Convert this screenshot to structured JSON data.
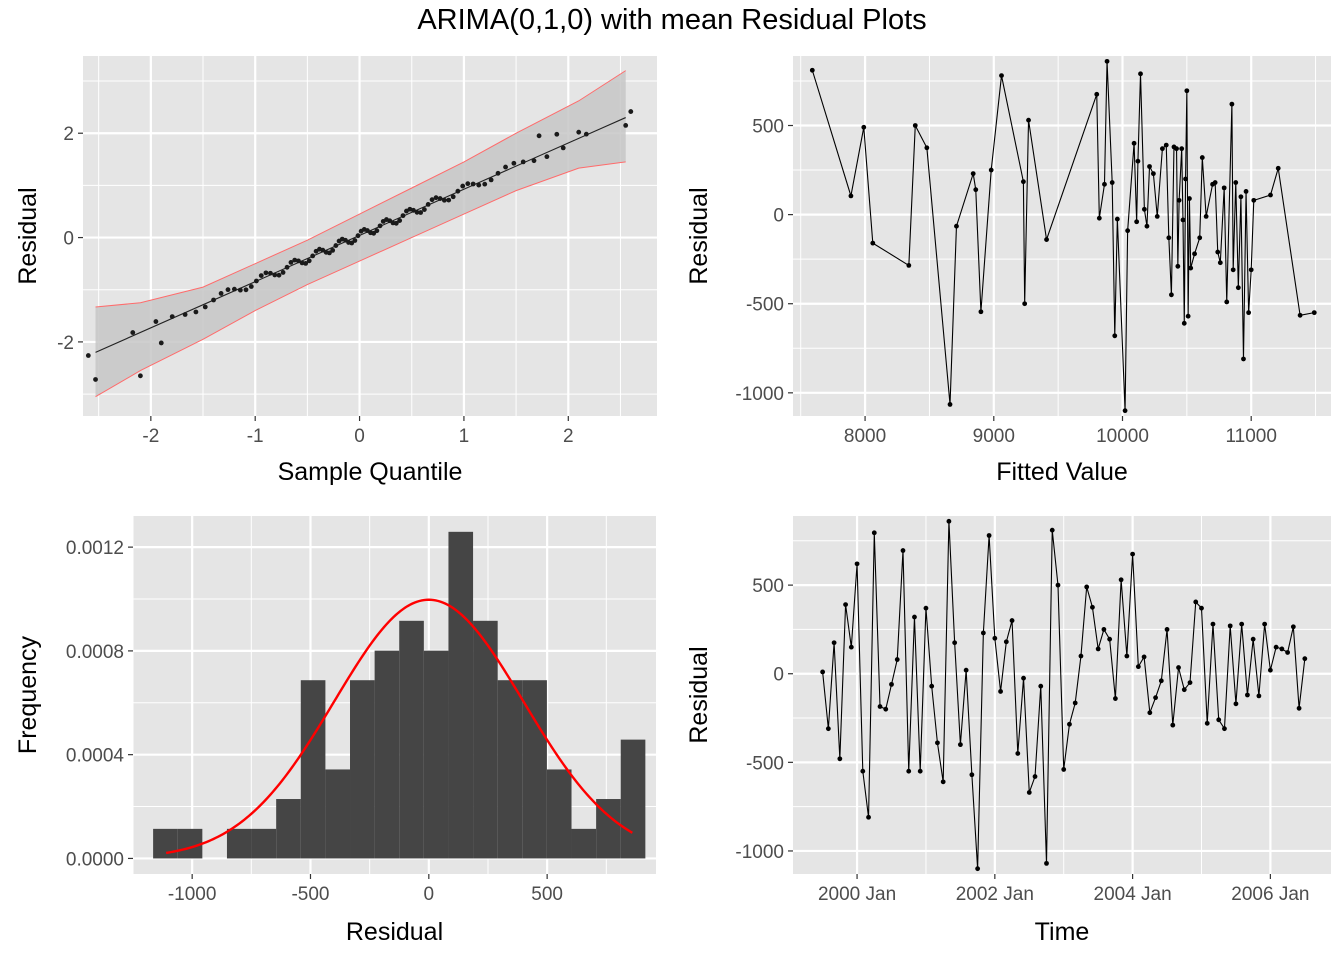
{
  "title": "ARIMA(0,1,0) with mean Residual Plots",
  "colors": {
    "panel": "#e5e5e5",
    "grid": "#ffffff",
    "points": "#000000",
    "band": "#c7c7c7",
    "band_edge": "#ff6b6b",
    "bars": "#454545",
    "density": "#ff0000"
  },
  "chart_data": [
    {
      "id": "qq",
      "type": "scatter",
      "xlabel": "Sample Quantile",
      "ylabel": "Residual",
      "xlim": [
        -2.65,
        2.85
      ],
      "ylim": [
        -3.42,
        3.48
      ],
      "x_ticks": [
        -2,
        -1,
        0,
        1,
        2
      ],
      "x_tick_labels": [
        "-2",
        "-1",
        "0",
        "1",
        "2"
      ],
      "y_ticks": [
        -2,
        0,
        2
      ],
      "y_tick_labels": [
        "-2",
        "0",
        "2"
      ],
      "line": {
        "x": [
          -2.53,
          2.55
        ],
        "y": [
          -2.2,
          2.3
        ]
      },
      "band": {
        "x": [
          -2.53,
          -2.1,
          -1.5,
          -1.0,
          -0.5,
          0.0,
          0.5,
          1.0,
          1.5,
          2.1,
          2.55
        ],
        "lower": [
          -3.05,
          -2.55,
          -1.95,
          -1.4,
          -0.9,
          -0.45,
          0.0,
          0.45,
          0.9,
          1.33,
          1.45
        ],
        "upper": [
          -1.33,
          -1.25,
          -0.95,
          -0.5,
          -0.05,
          0.45,
          0.95,
          1.45,
          2.0,
          2.62,
          3.2
        ]
      },
      "n_points": 86,
      "outliers": [
        [
          -2.53,
          -2.72
        ],
        [
          -2.1,
          -2.65
        ],
        [
          -1.9,
          -2.02
        ],
        [
          2.55,
          2.15
        ],
        [
          2.1,
          2.02
        ],
        [
          1.89,
          1.98
        ],
        [
          1.72,
          1.95
        ]
      ]
    },
    {
      "id": "fitted",
      "type": "line",
      "xlabel": "Fitted Value",
      "ylabel": "Residual",
      "xlim": [
        7440,
        11620
      ],
      "ylim": [
        -1130,
        890
      ],
      "x_ticks": [
        8000,
        9000,
        10000,
        11000
      ],
      "x_tick_labels": [
        "8000",
        "9000",
        "10000",
        "11000"
      ],
      "y_ticks": [
        -1000,
        -500,
        0,
        500
      ],
      "y_tick_labels": [
        "-1000",
        "-500",
        "0",
        "500"
      ],
      "x": [
        7590,
        7890,
        7990,
        8060,
        8340,
        8390,
        8480,
        8660,
        8710,
        8840,
        8860,
        8900,
        8980,
        9060,
        9230,
        9240,
        9270,
        9410,
        9800,
        9820,
        9860,
        9880,
        9920,
        9940,
        9960,
        10020,
        10040,
        10090,
        10110,
        10120,
        10140,
        10170,
        10190,
        10210,
        10240,
        10270,
        10310,
        10340,
        10360,
        10380,
        10400,
        10420,
        10430,
        10440,
        10460,
        10470,
        10480,
        10490,
        10500,
        10510,
        10520,
        10530,
        10560,
        10600,
        10620,
        10650,
        10700,
        10720,
        10740,
        10760,
        10790,
        10810,
        10850,
        10860,
        10880,
        10900,
        10920,
        10940,
        10960,
        10980,
        11000,
        11020,
        11150,
        11210,
        11380,
        11490
      ],
      "y": [
        810,
        105,
        490,
        -160,
        -285,
        500,
        375,
        -1065,
        -65,
        230,
        140,
        -545,
        250,
        780,
        185,
        -500,
        530,
        -140,
        675,
        -20,
        170,
        860,
        180,
        -680,
        -25,
        -1100,
        -90,
        400,
        -40,
        300,
        790,
        30,
        -65,
        270,
        230,
        -10,
        370,
        390,
        -130,
        -450,
        380,
        370,
        -290,
        80,
        370,
        -30,
        -610,
        200,
        695,
        -570,
        90,
        -300,
        -220,
        -130,
        320,
        -10,
        170,
        180,
        -210,
        -270,
        150,
        -490,
        620,
        -310,
        180,
        -410,
        100,
        -810,
        130,
        -550,
        -310,
        80,
        110,
        260,
        -565,
        -550
      ]
    },
    {
      "id": "hist",
      "type": "bar",
      "xlabel": "Residual",
      "ylabel": "Frequency",
      "xlim": [
        -1250,
        960
      ],
      "ylim": [
        -6e-05,
        0.00132
      ],
      "x_ticks": [
        -1000,
        -500,
        0,
        500
      ],
      "x_tick_labels": [
        "-1000",
        "-500",
        "0",
        "500"
      ],
      "y_ticks": [
        0,
        0.0004,
        0.0008,
        0.0012
      ],
      "y_tick_labels": [
        "0.0000",
        "0.0004",
        "0.0008",
        "0.0012"
      ],
      "bin_width": 104,
      "bin_starts": [
        -1165,
        -1061,
        -957,
        -853,
        -749,
        -645,
        -541,
        -437,
        -333,
        -229,
        -125,
        -21,
        83,
        187,
        291,
        395,
        499,
        603,
        707,
        811
      ],
      "values": [
        0.000114,
        0.000114,
        0,
        0.000114,
        0.000114,
        0.000229,
        0.000687,
        0.000343,
        0.000687,
        0.000801,
        0.000916,
        0.000801,
        0.001259,
        0.000916,
        0.000687,
        0.000687,
        0.000343,
        0.000114,
        0.000229,
        0.000458
      ],
      "density": {
        "mean": 0,
        "sd": 400,
        "x_range": [
          -1110,
          860
        ]
      }
    },
    {
      "id": "time",
      "type": "line",
      "xlabel": "Time",
      "ylabel": "Residual",
      "xlim": [
        1999.07,
        2006.88
      ],
      "ylim": [
        -1130,
        890
      ],
      "x_ticks": [
        2000,
        2002,
        2004,
        2006
      ],
      "x_tick_labels": [
        "2000 Jan",
        "2002 Jan",
        "2004 Jan",
        "2006 Jan"
      ],
      "y_ticks": [
        -1000,
        -500,
        0,
        500
      ],
      "y_tick_labels": [
        "-1000",
        "-500",
        "0",
        "500"
      ],
      "start": 1999.5,
      "step": 0.0833333,
      "values": [
        10,
        -310,
        175,
        -480,
        390,
        150,
        620,
        -550,
        -810,
        795,
        -185,
        -200,
        -60,
        80,
        695,
        -550,
        320,
        -550,
        370,
        -70,
        -390,
        -610,
        860,
        175,
        -400,
        20,
        -570,
        -1100,
        230,
        780,
        200,
        -100,
        180,
        300,
        -450,
        -25,
        -670,
        -580,
        -70,
        -1070,
        810,
        500,
        -540,
        -285,
        -165,
        100,
        490,
        375,
        140,
        250,
        195,
        -140,
        530,
        100,
        675,
        40,
        95,
        -220,
        -135,
        -40,
        250,
        -290,
        35,
        -90,
        -50,
        405,
        370,
        -280,
        280,
        -260,
        -310,
        270,
        -170,
        280,
        -120,
        195,
        -125,
        280,
        20,
        150,
        140,
        120,
        265,
        -195,
        85
      ]
    }
  ]
}
